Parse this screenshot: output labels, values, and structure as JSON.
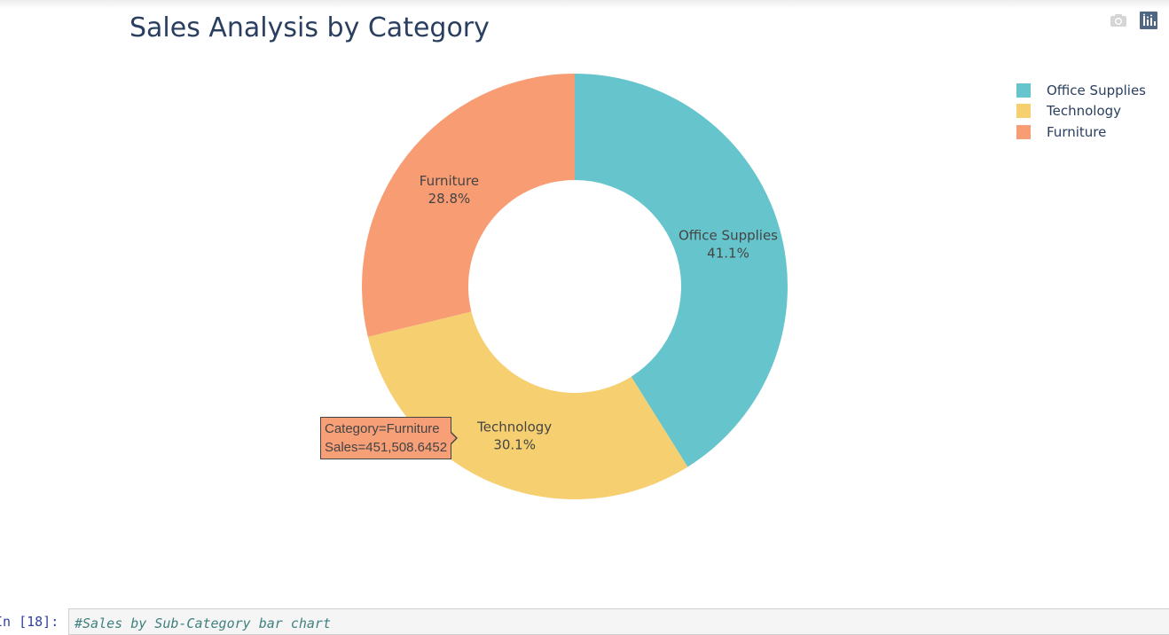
{
  "chart_data": {
    "type": "pie",
    "title": "Sales Analysis by Category",
    "hole": 0.5,
    "direction": "clockwise",
    "categories": [
      "Office Supplies",
      "Technology",
      "Furniture"
    ],
    "values": [
      41.1,
      30.1,
      28.8
    ],
    "value_format": "percent",
    "colors": [
      "#66c5cc",
      "#f6cf71",
      "#f89c74"
    ],
    "legend": [
      "Office Supplies",
      "Technology",
      "Furniture"
    ],
    "legend_position": "top-right"
  },
  "slice_labels": [
    {
      "name": "Office Supplies",
      "pct": "41.1%"
    },
    {
      "name": "Technology",
      "pct": "30.1%"
    },
    {
      "name": "Furniture",
      "pct": "28.8%"
    }
  ],
  "hover": {
    "line1": "Category=Furniture",
    "line2": "Sales=451,508.6452"
  },
  "modebar": {
    "icons": [
      "camera-icon",
      "plotly-logo-icon"
    ]
  },
  "notebook": {
    "prompt": "In [18]:",
    "code": "#Sales by Sub-Category bar chart"
  }
}
